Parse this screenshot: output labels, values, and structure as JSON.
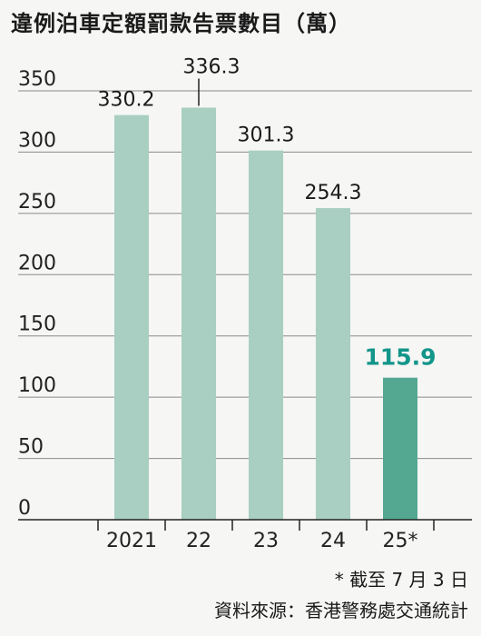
{
  "header": {
    "title": "違例泊車定額罰款告票數目（萬）"
  },
  "chart_data": {
    "type": "bar",
    "title": "違例泊車定額罰款告票數目（萬）",
    "categories": [
      "2021",
      "22",
      "23",
      "24",
      "25*"
    ],
    "values": [
      330.2,
      336.3,
      301.3,
      254.3,
      115.9
    ],
    "value_labels": [
      "330.2",
      "336.3",
      "301.3",
      "254.3",
      "115.9"
    ],
    "y_ticks": [
      0,
      50,
      100,
      150,
      200,
      250,
      300,
      350
    ],
    "ylim": [
      0,
      350
    ],
    "xlabel": "",
    "ylabel": "",
    "grid": true,
    "colors": {
      "bar": "#a8cfc1",
      "highlight_bar": "#54a891",
      "highlight_label": "#12958a",
      "grid": "#8a8a8a",
      "axis": "#222222"
    },
    "highlight_index": 4
  },
  "footer": {
    "note": "* 截至 7 月 3 日",
    "source": "資料來源：香港警務處交通統計"
  }
}
